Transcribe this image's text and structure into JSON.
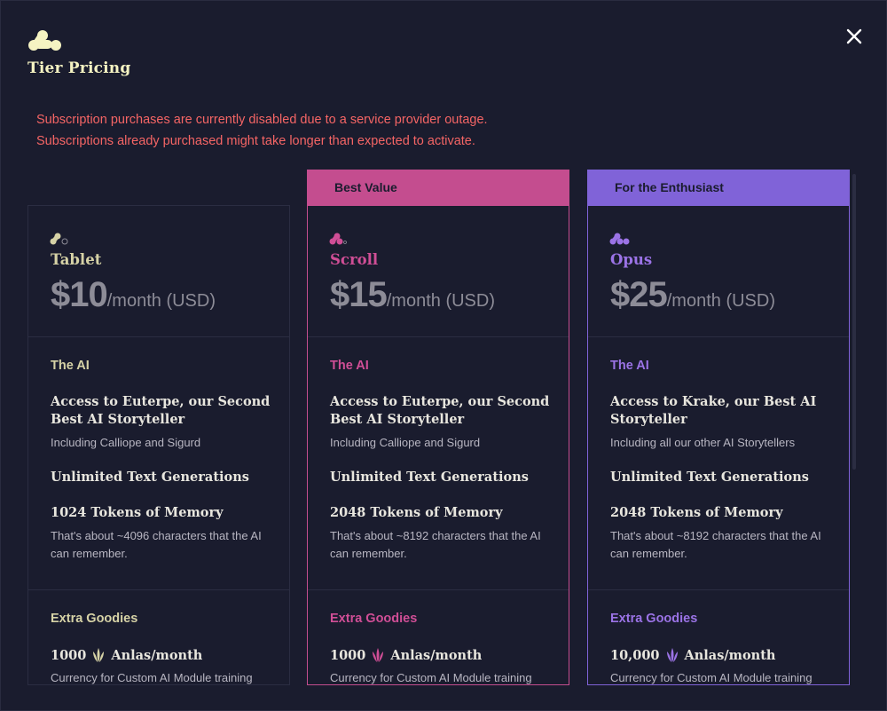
{
  "modal": {
    "title": "Tier Pricing",
    "warning_line1": "Subscription purchases are currently disabled due to a service provider outage.",
    "warning_line2": "Subscriptions already purchased might take longer than expected to activate.",
    "close_icon": "close-icon",
    "logo_icon": "novelai-logo-icon"
  },
  "colors": {
    "background": "#1a1c2e",
    "title": "#f5f3c2",
    "warning": "#f56565",
    "tablet_accent": "#d6d2a6",
    "scroll_accent": "#c44d8f",
    "opus_accent": "#8063d8"
  },
  "tiers": [
    {
      "id": "tablet",
      "banner": "",
      "name": "Tablet",
      "price": "$10",
      "period": "/month (USD)",
      "ai_label": "The AI",
      "model": "Access to Euterpe, our Second Best AI Storyteller",
      "model_sub": "Including Calliope and Sigurd",
      "generations": "Unlimited Text Generations",
      "memory": "1024 Tokens of Memory",
      "memory_sub": "That's about ~4096 characters that the AI can remember.",
      "extras_label": "Extra Goodies",
      "anlas_amount": "1000",
      "anlas_unit": "Anlas/month",
      "anlas_sub": "Currency for Custom AI Module training"
    },
    {
      "id": "scroll",
      "banner": "Best Value",
      "name": "Scroll",
      "price": "$15",
      "period": "/month (USD)",
      "ai_label": "The AI",
      "model": "Access to Euterpe, our Second Best AI Storyteller",
      "model_sub": "Including Calliope and Sigurd",
      "generations": "Unlimited Text Generations",
      "memory": "2048 Tokens of Memory",
      "memory_sub": "That's about ~8192 characters that the AI can remember.",
      "extras_label": "Extra Goodies",
      "anlas_amount": "1000",
      "anlas_unit": "Anlas/month",
      "anlas_sub": "Currency for Custom AI Module training"
    },
    {
      "id": "opus",
      "banner": "For the Enthusiast",
      "name": "Opus",
      "price": "$25",
      "period": "/month (USD)",
      "ai_label": "The AI",
      "model": "Access to Krake, our Best AI Storyteller",
      "model_sub": "Including all our other AI Storytellers",
      "generations": "Unlimited Text Generations",
      "memory": "2048 Tokens of Memory",
      "memory_sub": "That's about ~8192 characters that the AI can remember.",
      "extras_label": "Extra Goodies",
      "anlas_amount": "10,000",
      "anlas_unit": "Anlas/month",
      "anlas_sub": "Currency for Custom AI Module training"
    }
  ]
}
